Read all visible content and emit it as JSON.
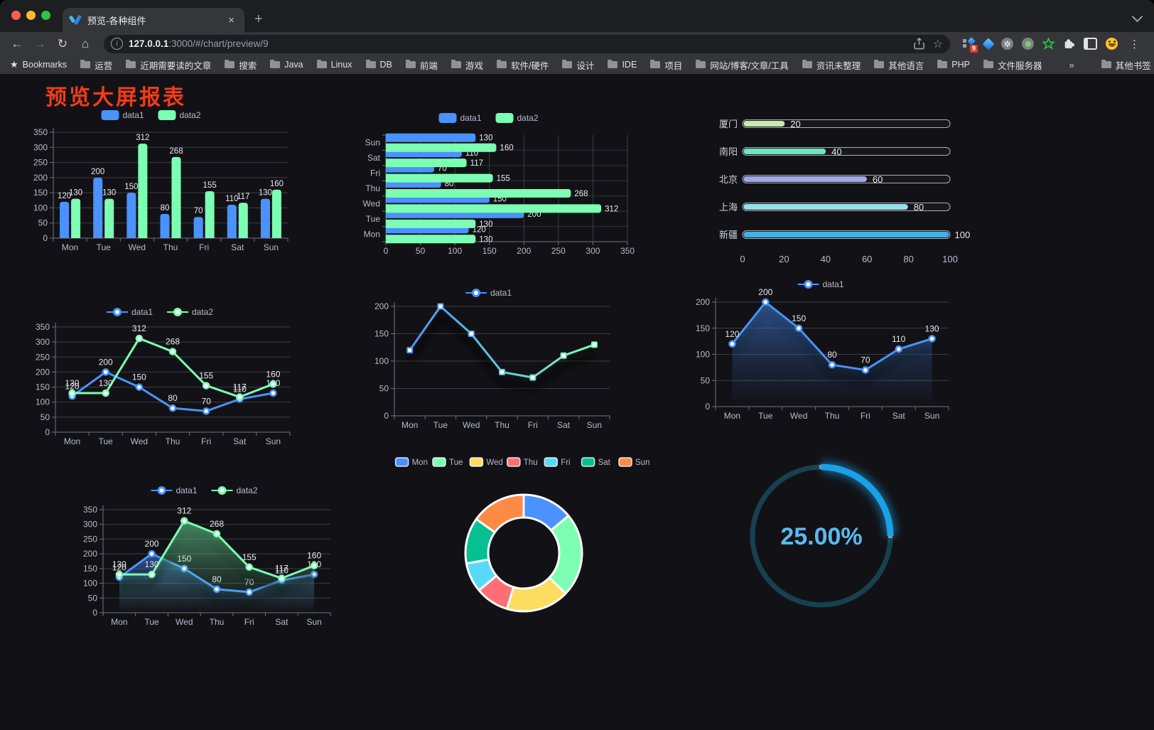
{
  "browser": {
    "tab_title": "预览-各种组件",
    "icons": {
      "tab_close": "×",
      "new_tab": "+",
      "back": "←",
      "forward": "→",
      "reload": "↻",
      "home": "⌂",
      "info": "i",
      "star": "☆",
      "bookmarks_star": "★",
      "menu": "⋮",
      "overflow": "»"
    },
    "address": {
      "host": "127.0.0.1",
      "rest": ":3000/#/chart/preview/9"
    },
    "extensions_badge": "9",
    "bookmarks": {
      "root_label": "Bookmarks",
      "folders": [
        "运营",
        "近期需要读的文章",
        "搜索",
        "Java",
        "Linux",
        "DB",
        "前端",
        "游戏",
        "软件/硬件",
        "设计",
        "IDE",
        "项目",
        "网站/博客/文章/工具",
        "资讯未整理",
        "其他语言",
        "PHP",
        "文件服务器"
      ],
      "overflow": "»",
      "other": "其他书签"
    }
  },
  "page": {
    "title": "预览大屏报表"
  },
  "chart_data": [
    {
      "id": "bar-vertical",
      "type": "bar",
      "categories": [
        "Mon",
        "Tue",
        "Wed",
        "Thu",
        "Fri",
        "Sat",
        "Sun"
      ],
      "series": [
        {
          "name": "data1",
          "color": "#4992ff",
          "values": [
            120,
            200,
            150,
            80,
            70,
            110,
            130
          ]
        },
        {
          "name": "data2",
          "color": "#7cffb2",
          "values": [
            130,
            130,
            312,
            268,
            155,
            117,
            160
          ]
        }
      ],
      "ylim": [
        0,
        350
      ],
      "ytick": 50,
      "show_labels": true,
      "legend_pos": "top",
      "grid": true
    },
    {
      "id": "bar-horizontal",
      "type": "bar-h",
      "categories": [
        "Mon",
        "Tue",
        "Wed",
        "Thu",
        "Fri",
        "Sat",
        "Sun"
      ],
      "series": [
        {
          "name": "data1",
          "color": "#4992ff",
          "values": [
            120,
            200,
            150,
            80,
            70,
            110,
            130
          ]
        },
        {
          "name": "data2",
          "color": "#7cffb2",
          "values": [
            130,
            130,
            312,
            268,
            155,
            117,
            160
          ]
        }
      ],
      "xlim": [
        0,
        350
      ],
      "xtick": 50,
      "show_labels": true,
      "legend_pos": "top",
      "grid": true
    },
    {
      "id": "progress-bars",
      "type": "progress",
      "xlim": [
        0,
        100
      ],
      "ticks": [
        0,
        20,
        40,
        60,
        80,
        100
      ],
      "items": [
        {
          "label": "厦门",
          "value": 20,
          "color": "#c4ebad"
        },
        {
          "label": "南阳",
          "value": 40,
          "color": "#6be6c1"
        },
        {
          "label": "北京",
          "value": 60,
          "color": "#a0a7e6"
        },
        {
          "label": "上海",
          "value": 80,
          "color": "#96dee8"
        },
        {
          "label": "新疆",
          "value": 100,
          "color": "#3fb1e3"
        }
      ]
    },
    {
      "id": "line-two",
      "type": "line",
      "categories": [
        "Mon",
        "Tue",
        "Wed",
        "Thu",
        "Fri",
        "Sat",
        "Sun"
      ],
      "series": [
        {
          "name": "data1",
          "color": "#4992ff",
          "values": [
            120,
            200,
            150,
            80,
            70,
            110,
            130
          ]
        },
        {
          "name": "data2",
          "color": "#7cffb2",
          "values": [
            130,
            130,
            312,
            268,
            155,
            117,
            160
          ]
        }
      ],
      "ylim": [
        0,
        350
      ],
      "ytick": 50,
      "show_labels": true,
      "legend_pos": "top",
      "grid": true
    },
    {
      "id": "line-gradient",
      "type": "line",
      "categories": [
        "Mon",
        "Tue",
        "Wed",
        "Thu",
        "Fri",
        "Sat",
        "Sun"
      ],
      "series": [
        {
          "name": "data1",
          "color": "#4992ff",
          "color2": "#7cffb2",
          "values": [
            120,
            200,
            150,
            80,
            70,
            110,
            130
          ]
        }
      ],
      "ylim": [
        0,
        200
      ],
      "ytick": 50,
      "show_labels": false,
      "shadow": true,
      "marker": "rect",
      "legend_pos": "top",
      "grid": true
    },
    {
      "id": "area-one",
      "type": "line",
      "area": true,
      "categories": [
        "Mon",
        "Tue",
        "Wed",
        "Thu",
        "Fri",
        "Sat",
        "Sun"
      ],
      "series": [
        {
          "name": "data1",
          "color": "#4992ff",
          "values": [
            120,
            200,
            150,
            80,
            70,
            110,
            130
          ]
        }
      ],
      "ylim": [
        0,
        200
      ],
      "ytick": 50,
      "show_labels": true,
      "shadow": true,
      "legend_pos": "top",
      "grid": true
    },
    {
      "id": "area-two",
      "type": "line",
      "area": true,
      "categories": [
        "Mon",
        "Tue",
        "Wed",
        "Thu",
        "Fri",
        "Sat",
        "Sun"
      ],
      "series": [
        {
          "name": "data1",
          "color": "#4992ff",
          "values": [
            120,
            200,
            150,
            80,
            70,
            110,
            130
          ]
        },
        {
          "name": "data2",
          "color": "#7cffb2",
          "values": [
            130,
            130,
            312,
            268,
            155,
            117,
            160
          ]
        }
      ],
      "ylim": [
        0,
        350
      ],
      "ytick": 50,
      "show_labels": true,
      "shadow": true,
      "legend_pos": "top",
      "grid": true
    },
    {
      "id": "donut",
      "type": "pie",
      "items": [
        {
          "label": "Mon",
          "value": 120,
          "color": "#4992ff"
        },
        {
          "label": "Tue",
          "value": 200,
          "color": "#7cffb2"
        },
        {
          "label": "Wed",
          "value": 150,
          "color": "#fddd60"
        },
        {
          "label": "Thu",
          "value": 80,
          "color": "#ff6e76"
        },
        {
          "label": "Fri",
          "value": 70,
          "color": "#58d9f9"
        },
        {
          "label": "Sat",
          "value": 110,
          "color": "#05c091"
        },
        {
          "label": "Sun",
          "value": 130,
          "color": "#ff8a45"
        }
      ],
      "border_color": "#ffffff",
      "legend_pos": "top"
    },
    {
      "id": "gauge",
      "type": "gauge",
      "value": 25,
      "display": "25.00%",
      "color": "#1aa0e9",
      "track_color": "#17414f",
      "text_color": "#5ab9f1"
    }
  ]
}
